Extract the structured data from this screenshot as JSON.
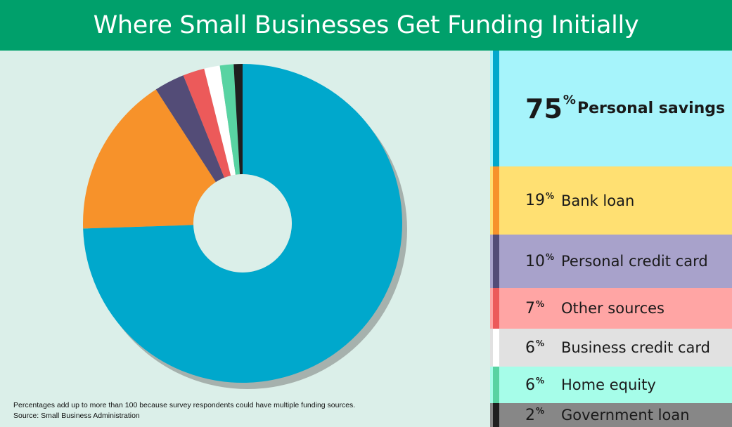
{
  "title": "Where Small Businesses Get Funding Initially",
  "footnote": {
    "line1": "Percentages add up to more than 100 because survey respondents could have multiple funding sources.",
    "line2": "Source: Small Business Administration"
  },
  "percent_sign": "%",
  "colors": {
    "header": "#00a06b",
    "background": "#dbefe9",
    "shadow": "#a6b1ad"
  },
  "legend": [
    {
      "value": "75",
      "label": "Personal savings",
      "swatch": "#00a8cc",
      "bg": "#a6f4fb"
    },
    {
      "value": "19",
      "label": "Bank loan",
      "swatch": "#f7922a",
      "bg": "#ffe072"
    },
    {
      "value": "10",
      "label": "Personal credit card",
      "swatch": "#534c77",
      "bg": "#a8a2cb"
    },
    {
      "value": "7",
      "label": "Other sources",
      "swatch": "#ec5a5a",
      "bg": "#ffa5a4"
    },
    {
      "value": "6",
      "label": "Business credit card",
      "swatch": "#ffffff",
      "bg": "#e1e1e1"
    },
    {
      "value": "6",
      "label": "Home equity",
      "swatch": "#58d3a2",
      "bg": "#a6fde9"
    },
    {
      "value": "2",
      "label": "Government loan",
      "swatch": "#1f1f1f",
      "bg": "#878787"
    }
  ],
  "chart_data": {
    "type": "pie",
    "variant": "donut",
    "title": "Where Small Businesses Get Funding Initially",
    "unit": "%",
    "categories": [
      "Personal savings",
      "Bank loan",
      "Personal credit card",
      "Other sources",
      "Business credit card",
      "Home equity",
      "Government loan"
    ],
    "values": [
      75,
      19,
      10,
      7,
      6,
      6,
      2
    ],
    "slice_shares_percent": [
      75,
      16.5,
      3.1,
      2.2,
      1.6,
      1.4,
      0.9
    ],
    "colors": [
      "#00a8cc",
      "#f7922a",
      "#534c77",
      "#ec5a5a",
      "#ffffff",
      "#58d3a2",
      "#1f1f1f"
    ]
  }
}
